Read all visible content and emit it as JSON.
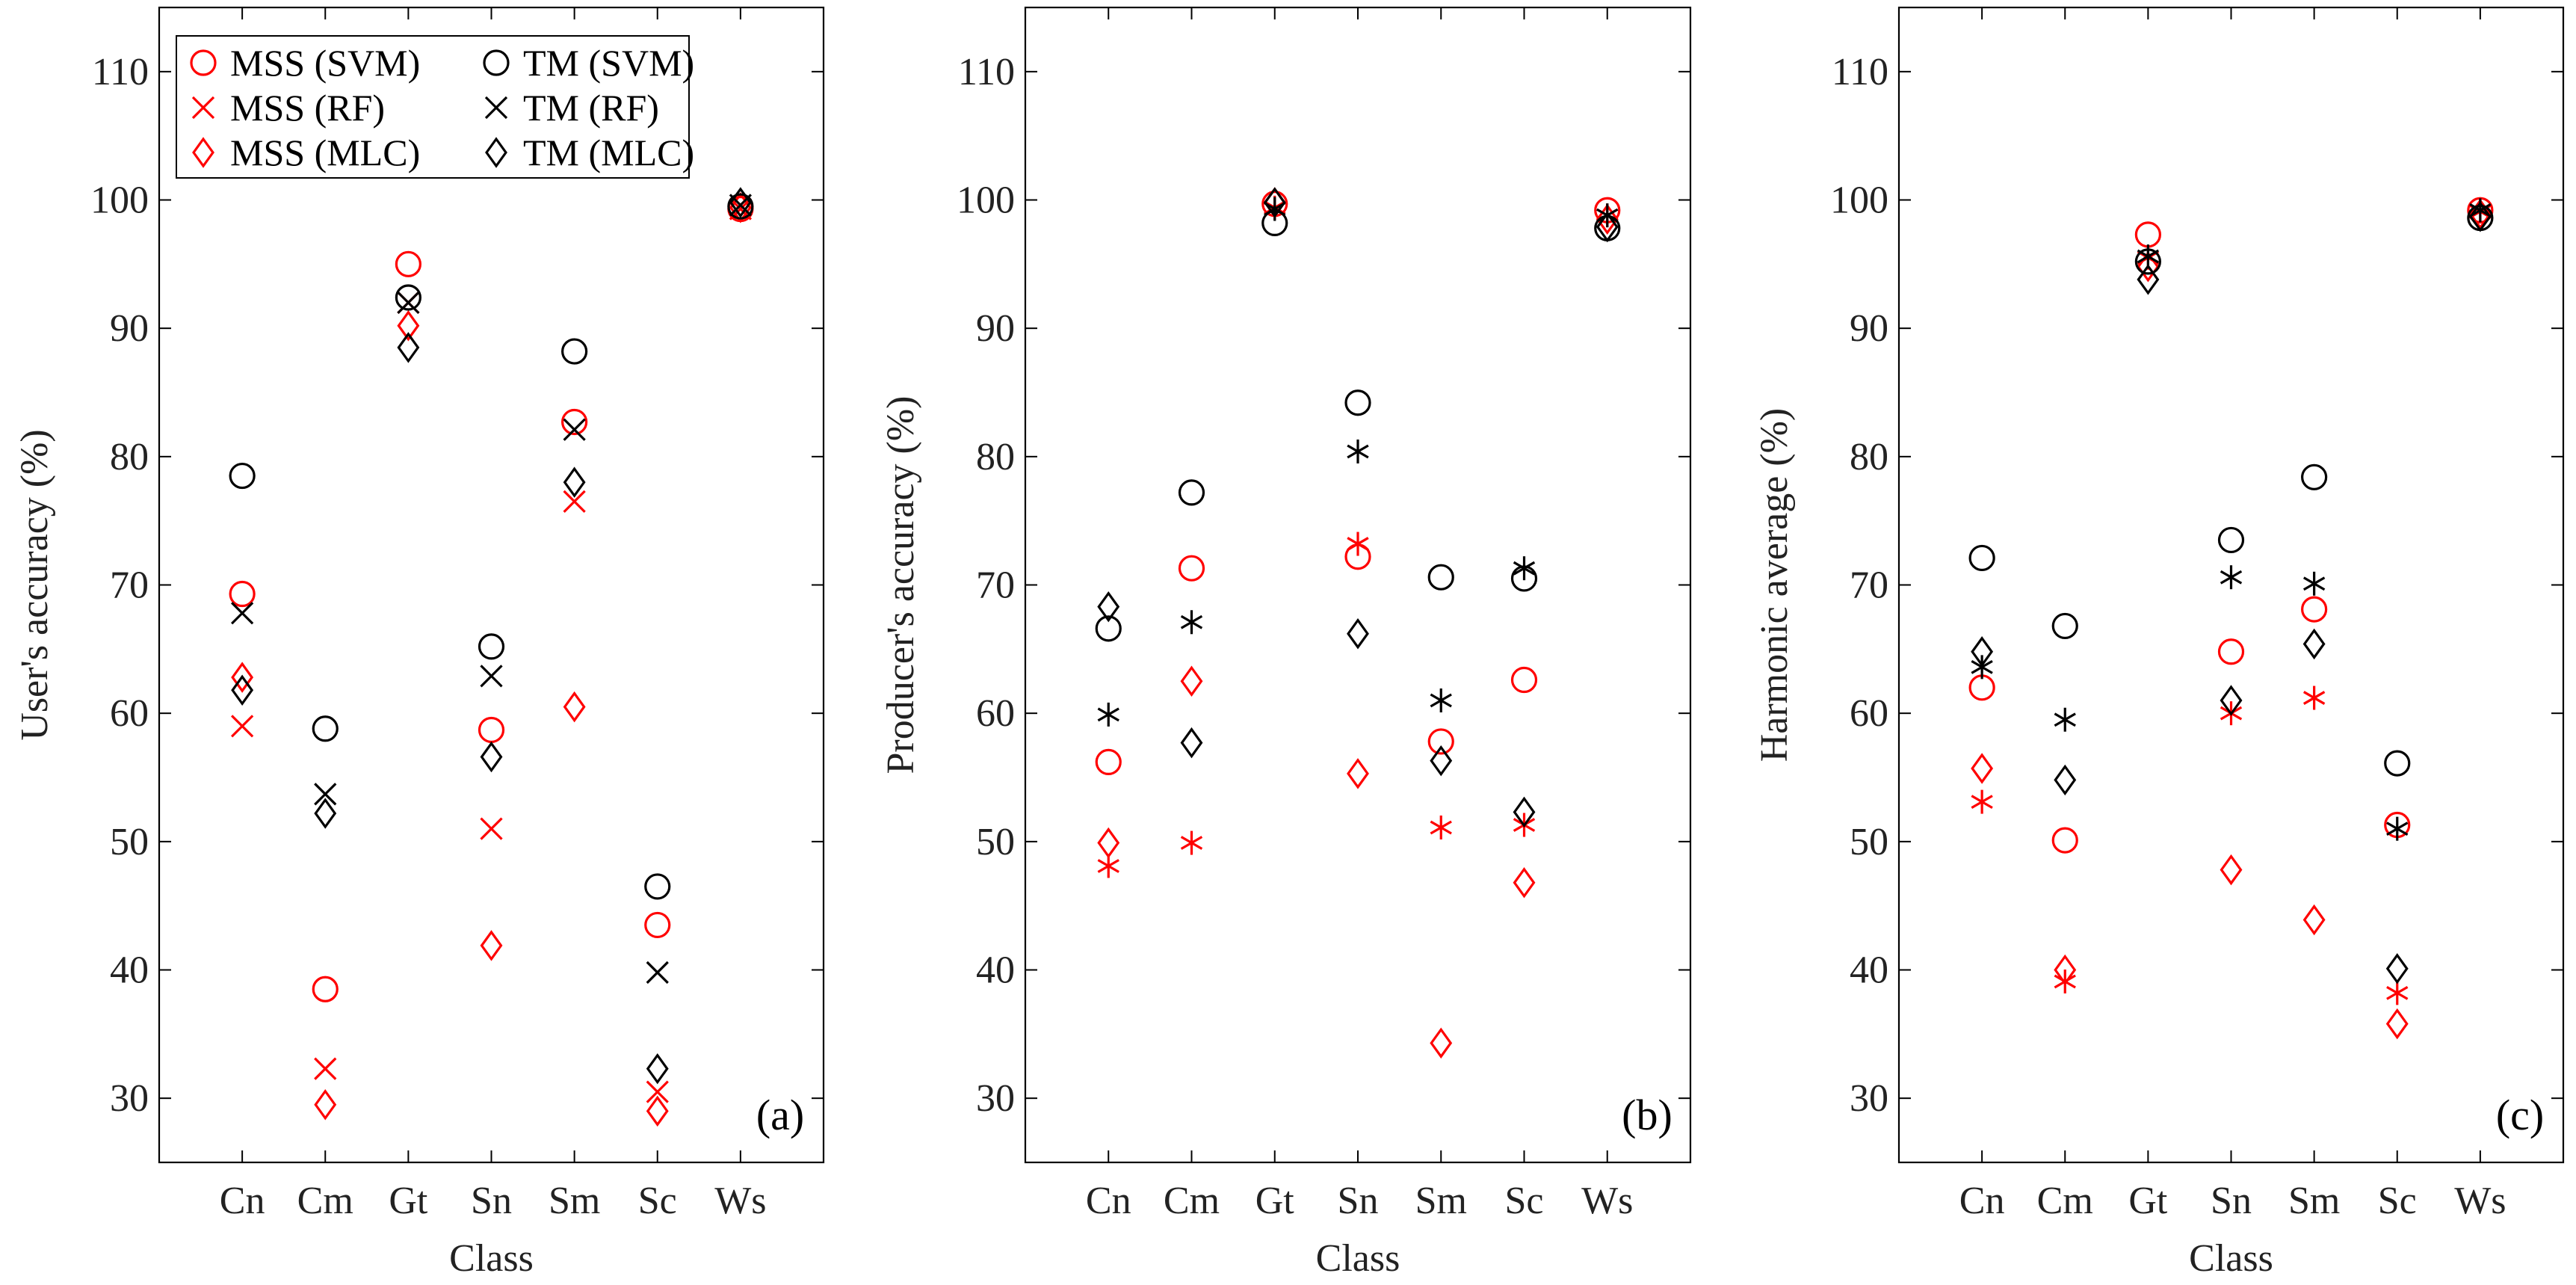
{
  "colors": {
    "mss": "#ff0000",
    "tm": "#000000",
    "axis": "#000000"
  },
  "legend_entries": [
    {
      "label": "MSS (SVM)",
      "marker": "circle",
      "color": "#ff0000"
    },
    {
      "label": "TM (SVM)",
      "marker": "circle",
      "color": "#000000"
    },
    {
      "label": "MSS (RF)",
      "marker": "cross",
      "color": "#ff0000"
    },
    {
      "label": "TM (RF)",
      "marker": "cross",
      "color": "#000000"
    },
    {
      "label": "MSS (MLC)",
      "marker": "diamond",
      "color": "#ff0000"
    },
    {
      "label": "TM (MLC)",
      "marker": "diamond",
      "color": "#000000"
    }
  ],
  "chart_data": [
    {
      "type": "scatter",
      "panel_label": "(a)",
      "title": "",
      "xlabel": "Class",
      "ylabel": "User's accuracy (%)",
      "ylim": [
        25,
        115
      ],
      "yticks": [
        30,
        40,
        50,
        60,
        70,
        80,
        90,
        100,
        110
      ],
      "categories": [
        "Cn",
        "Cm",
        "Gt",
        "Sn",
        "Sm",
        "Sc",
        "Ws"
      ],
      "legend": "top-left",
      "series": [
        {
          "name": "MSS (SVM)",
          "marker": "circle",
          "color": "#ff0000",
          "values": [
            69.3,
            38.5,
            95.0,
            58.7,
            82.7,
            43.5,
            99.3
          ]
        },
        {
          "name": "MSS (RF)",
          "marker": "x",
          "color": "#ff0000",
          "values": [
            59.0,
            32.3,
            92.0,
            51.0,
            76.5,
            30.5,
            99.3
          ]
        },
        {
          "name": "MSS (MLC)",
          "marker": "diamond",
          "color": "#ff0000",
          "values": [
            62.8,
            29.5,
            90.2,
            41.9,
            60.5,
            29.0,
            99.4
          ]
        },
        {
          "name": "TM (SVM)",
          "marker": "circle",
          "color": "#000000",
          "values": [
            78.5,
            58.8,
            92.4,
            65.2,
            88.2,
            46.5,
            99.5
          ]
        },
        {
          "name": "TM (RF)",
          "marker": "x",
          "color": "#000000",
          "values": [
            67.8,
            53.7,
            92.0,
            62.9,
            82.1,
            39.8,
            99.6
          ]
        },
        {
          "name": "TM (MLC)",
          "marker": "diamond",
          "color": "#000000",
          "values": [
            61.8,
            52.2,
            88.5,
            56.6,
            78.0,
            32.3,
            99.8
          ]
        }
      ]
    },
    {
      "type": "scatter",
      "panel_label": "(b)",
      "title": "",
      "xlabel": "Class",
      "ylabel": "Producer's accuracy (%)",
      "ylim": [
        25,
        115
      ],
      "yticks": [
        30,
        40,
        50,
        60,
        70,
        80,
        90,
        100,
        110
      ],
      "categories": [
        "Cn",
        "Cm",
        "Gt",
        "Sn",
        "Sm",
        "Sc",
        "Ws"
      ],
      "series": [
        {
          "name": "MSS (SVM)",
          "marker": "circle",
          "color": "#ff0000",
          "values": [
            56.2,
            71.3,
            99.7,
            72.2,
            57.8,
            62.6,
            99.2
          ]
        },
        {
          "name": "MSS (RF)",
          "marker": "asterisk",
          "color": "#ff0000",
          "values": [
            48.1,
            49.9,
            99.4,
            73.2,
            51.1,
            51.3,
            98.8
          ]
        },
        {
          "name": "MSS (MLC)",
          "marker": "diamond",
          "color": "#ff0000",
          "values": [
            49.9,
            62.5,
            99.8,
            55.3,
            34.3,
            46.8,
            98.5
          ]
        },
        {
          "name": "TM (SVM)",
          "marker": "circle",
          "color": "#000000",
          "values": [
            66.6,
            77.2,
            98.2,
            84.2,
            70.6,
            70.5,
            97.8
          ]
        },
        {
          "name": "TM (RF)",
          "marker": "asterisk",
          "color": "#000000",
          "values": [
            59.9,
            67.1,
            99.3,
            80.4,
            61.0,
            71.3,
            98.8
          ]
        },
        {
          "name": "TM (MLC)",
          "marker": "diamond",
          "color": "#000000",
          "values": [
            68.3,
            57.7,
            99.8,
            66.2,
            56.3,
            52.3,
            97.9
          ]
        }
      ]
    },
    {
      "type": "scatter",
      "panel_label": "(c)",
      "title": "",
      "xlabel": "Class",
      "ylabel": "Harmonic average (%)",
      "ylim": [
        25,
        115
      ],
      "yticks": [
        30,
        40,
        50,
        60,
        70,
        80,
        90,
        100,
        110
      ],
      "categories": [
        "Cn",
        "Cm",
        "Gt",
        "Sn",
        "Sm",
        "Sc",
        "Ws"
      ],
      "series": [
        {
          "name": "MSS (SVM)",
          "marker": "circle",
          "color": "#ff0000",
          "values": [
            62.0,
            50.1,
            97.3,
            64.8,
            68.1,
            51.3,
            99.2
          ]
        },
        {
          "name": "MSS (RF)",
          "marker": "asterisk",
          "color": "#ff0000",
          "values": [
            53.1,
            39.1,
            95.5,
            60.0,
            61.2,
            38.2,
            99.1
          ]
        },
        {
          "name": "MSS (MLC)",
          "marker": "diamond",
          "color": "#ff0000",
          "values": [
            55.7,
            40.0,
            94.8,
            47.8,
            43.9,
            35.8,
            98.9
          ]
        },
        {
          "name": "TM (SVM)",
          "marker": "circle",
          "color": "#000000",
          "values": [
            72.1,
            66.8,
            95.2,
            73.5,
            78.4,
            56.1,
            98.6
          ]
        },
        {
          "name": "TM (RF)",
          "marker": "asterisk",
          "color": "#000000",
          "values": [
            63.6,
            59.5,
            95.6,
            70.6,
            70.1,
            51.0,
            99.2
          ]
        },
        {
          "name": "TM (MLC)",
          "marker": "diamond",
          "color": "#000000",
          "values": [
            64.8,
            54.8,
            93.8,
            61.0,
            65.4,
            40.1,
            98.7
          ]
        }
      ]
    }
  ]
}
